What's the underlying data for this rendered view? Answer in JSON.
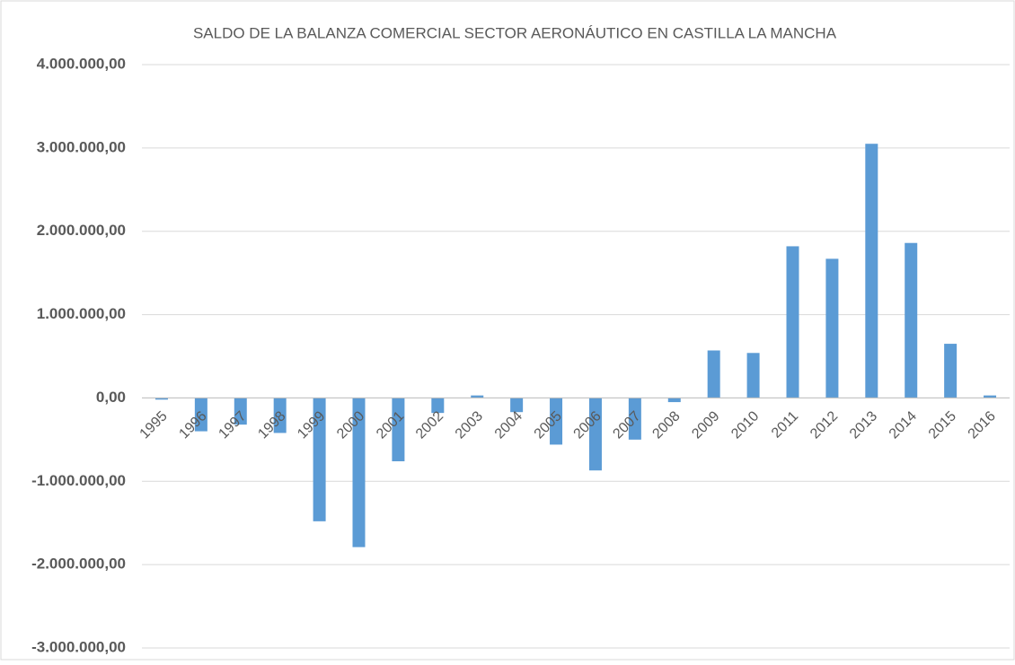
{
  "chart_data": {
    "type": "bar",
    "title": "SALDO DE LA BALANZA COMERCIAL SECTOR AERONÁUTICO EN CASTILLA LA MANCHA",
    "categories": [
      "1995",
      "1996",
      "1997",
      "1998",
      "1999",
      "2000",
      "2001",
      "2002",
      "2003",
      "2004",
      "2005",
      "2006",
      "2007",
      "2008",
      "2009",
      "2010",
      "2011",
      "2012",
      "2013",
      "2014",
      "2015",
      "2016"
    ],
    "values": [
      -20000,
      -400000,
      -320000,
      -420000,
      -1480000,
      -1790000,
      -760000,
      -180000,
      30000,
      -170000,
      -560000,
      -870000,
      -500000,
      -50000,
      570000,
      540000,
      1820000,
      1670000,
      3050000,
      1860000,
      650000,
      30000
    ],
    "color": "#5b9bd5",
    "ylim": [
      -3000000,
      4000000
    ],
    "yticks": [
      {
        "value": -3000000,
        "label": "-3.000.000,00"
      },
      {
        "value": -2000000,
        "label": "-2.000.000,00"
      },
      {
        "value": -1000000,
        "label": "-1.000.000,00"
      },
      {
        "value": 0,
        "label": "0,00"
      },
      {
        "value": 1000000,
        "label": "1.000.000,00"
      },
      {
        "value": 2000000,
        "label": "2.000.000,00"
      },
      {
        "value": 3000000,
        "label": "3.000.000,00"
      },
      {
        "value": 4000000,
        "label": "4.000.000,00"
      }
    ],
    "grid": true
  }
}
